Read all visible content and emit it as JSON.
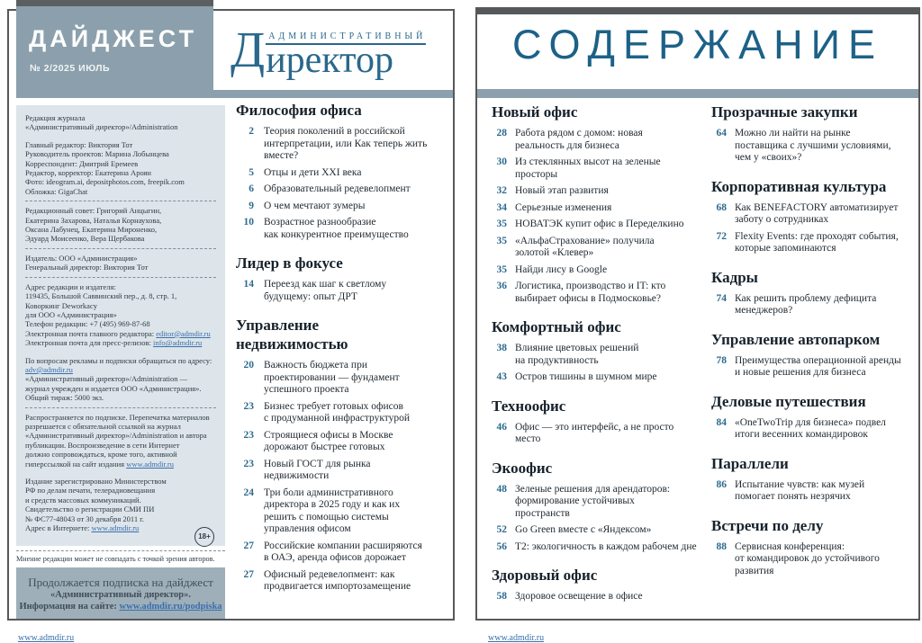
{
  "colors": {
    "accent_teal": "#2a688c",
    "contents_title_teal": "#1d6187",
    "header_gray_blue": "#8ba0ac",
    "sidebar_bg": "#dde5ea",
    "subscription_bg": "#9eafba",
    "link_blue": "#3a6fad",
    "frame_gray": "#57585a",
    "page_number_teal": "#2c6a8e",
    "heading_dark": "#17222c"
  },
  "left_page": {
    "header": {
      "digest_title": "ДАЙДЖЕСТ",
      "issue": "№ 2/2025 ИЮЛЬ",
      "logo_small": "АДМИНИСТРАТИВНЫЙ",
      "logo_word_initial": "Д",
      "logo_word_rest": "иректор"
    },
    "masthead_blocks": [
      {
        "gap": true,
        "lines": [
          [
            {
              "t": "Редакция журнала"
            }
          ],
          [
            {
              "t": "«Административный директор»/Administration"
            }
          ]
        ]
      },
      {
        "sep": true,
        "lines": [
          [
            {
              "t": "Главный редактор: Виктория Тот"
            }
          ],
          [
            {
              "t": "Руководитель проектов: Марина Лобынцева"
            }
          ],
          [
            {
              "t": "Корреспондент: Дмитрий Еремеев"
            }
          ],
          [
            {
              "t": "Редактор, корректор: Екатерина Ароян"
            }
          ],
          [
            {
              "t": "Фото: ideogram.ai, depositphotos.com, freepik.com"
            }
          ],
          [
            {
              "t": "Обложка: GigaChat"
            }
          ]
        ]
      },
      {
        "sep": true,
        "lines": [
          [
            {
              "t": "Редакционный совет: Григорий Анцыгин,"
            }
          ],
          [
            {
              "t": "Екатерина Захарова, Наталья Корнаухова,"
            }
          ],
          [
            {
              "t": "Оксана Лабунец, Екатерина Мироненко,"
            }
          ],
          [
            {
              "t": "Эдуард Моисеенко, Вера Щербакова"
            }
          ]
        ]
      },
      {
        "sep": true,
        "lines": [
          [
            {
              "t": "Издатель: ООО «Администрация»"
            }
          ],
          [
            {
              "t": "Генеральный директор: Виктория Тот"
            }
          ]
        ]
      },
      {
        "gap": true,
        "lines": [
          [
            {
              "t": "Адрес редакции и издателя:"
            }
          ],
          [
            {
              "t": "119435, Большой Саввинский пер., д. 8, стр. 1,"
            }
          ],
          [
            {
              "t": "Коворкинг Deworkacy"
            }
          ],
          [
            {
              "t": "для ООО «Администрация»"
            }
          ],
          [
            {
              "t": "Телефон редакции: +7 (495) 969-87-68"
            }
          ],
          [
            {
              "t": "Электронная почта главного редактора: "
            },
            {
              "t": "editor@admdir.ru",
              "l": 1
            }
          ],
          [
            {
              "t": "Электронная почта для пресс-релизов: "
            },
            {
              "t": "info@admdir.ru",
              "l": 1
            }
          ]
        ]
      },
      {
        "sep": true,
        "lines": [
          [
            {
              "t": "По вопросам рекламы и подписки обращаться по адресу:"
            }
          ],
          [
            {
              "t": "adv@admdir.ru",
              "l": 1
            }
          ],
          [
            {
              "t": "«Административный директор»/Administration —"
            }
          ],
          [
            {
              "t": "журнал учрежден и издается ООО «Администрация»."
            }
          ],
          [
            {
              "t": "Общий тираж: 5000 экз."
            }
          ]
        ]
      },
      {
        "gap": true,
        "lines": [
          [
            {
              "t": "Распространяется по подписке. Перепечатка материалов"
            }
          ],
          [
            {
              "t": "разрешается с обязательной ссылкой на журнал"
            }
          ],
          [
            {
              "t": "«Административный директор»/Administration и автора"
            }
          ],
          [
            {
              "t": "публикации. Воспроизведение в сети Интернет"
            }
          ],
          [
            {
              "t": "должно сопровождаться, кроме того, активной"
            }
          ],
          [
            {
              "t": "гиперссылкой на сайт издания "
            },
            {
              "t": "www.admdir.ru",
              "l": 1
            }
          ]
        ]
      },
      {
        "lines": [
          [
            {
              "t": "Издание зарегистрировано Министерством"
            }
          ],
          [
            {
              "t": "РФ по делам печати, телерадиовещания"
            }
          ],
          [
            {
              "t": "и средств массовых коммуникаций."
            }
          ],
          [
            {
              "t": "Свидетельство о регистрации СМИ ПИ"
            }
          ],
          [
            {
              "t": "№ ФС77-48043 от 30 декабря 2011 г."
            }
          ],
          [
            {
              "t": "Адрес в Интернете: "
            },
            {
              "t": "www.admdir.ru",
              "l": 1
            }
          ]
        ]
      }
    ],
    "age_badge": "18+",
    "disclaimer": "Мнение редакции может не совпадать с точкой зрения авторов.",
    "subscription": {
      "line1": "Продолжается подписка на дайджест",
      "line2": "«Административный директор».",
      "line3_prefix": "Информация на сайте: ",
      "line3_link": "www.admdir.ru/podpiska"
    },
    "footer_link": "www.admdir.ru",
    "toc_sections": [
      {
        "title": "Философия офиса",
        "items": [
          {
            "page": "2",
            "title": "Теория поколений в российской\nинтерпретации, или Как теперь жить\nвместе?"
          },
          {
            "page": "5",
            "title": "Отцы и дети XXI века"
          },
          {
            "page": "6",
            "title": "Образовательный редевелопмент"
          },
          {
            "page": "9",
            "title": "О чем мечтают зумеры"
          },
          {
            "page": "10",
            "title": "Возрастное разнообразие\nкак конкурентное преимущество"
          }
        ]
      },
      {
        "title": "Лидер в фокусе",
        "items": [
          {
            "page": "14",
            "title": "Переезд как шаг к светлому\nбудущему: опыт ДРТ"
          }
        ]
      },
      {
        "title": "Управление\nнедвижимостью",
        "items": [
          {
            "page": "20",
            "title": "Важность бюджета при\nпроектировании — фундамент\nуспешного проекта"
          },
          {
            "page": "23",
            "title": "Бизнес требует готовых офисов\nс продуманной инфраструктурой"
          },
          {
            "page": "23",
            "title": "Строящиеся офисы в Москве\nдорожают быстрее готовых"
          },
          {
            "page": "23",
            "title": "Новый ГОСТ для рынка\nнедвижимости"
          },
          {
            "page": "24",
            "title": "Три боли административного\nдиректора в 2025 году и как их\nрешить с помощью системы\nуправления офисом"
          },
          {
            "page": "27",
            "title": "Российские компании расширяются\nв ОАЭ, аренда офисов дорожает"
          },
          {
            "page": "27",
            "title": "Офисный редевелопмент: как\nпродвигается импортозамещение"
          }
        ]
      }
    ]
  },
  "right_page": {
    "title": "СОДЕРЖАНИЕ",
    "footer_link": "www.admdir.ru",
    "column1_sections": [
      {
        "title": "Новый офис",
        "items": [
          {
            "page": "28",
            "title": "Работа рядом с домом: новая\nреальность для бизнеса"
          },
          {
            "page": "30",
            "title": "Из стеклянных высот на зеленые\nпросторы"
          },
          {
            "page": "32",
            "title": "Новый этап развития"
          },
          {
            "page": "34",
            "title": "Серьезные изменения"
          },
          {
            "page": "35",
            "title": "НОВАТЭК купит офис в Переделкино"
          },
          {
            "page": "35",
            "title": "«АльфаСтрахование» получила\nзолотой «Клевер»"
          },
          {
            "page": "35",
            "title": "Найди лису в Google"
          },
          {
            "page": "36",
            "title": "Логистика, производство и IT: кто\nвыбирает офисы в Подмосковье?"
          }
        ]
      },
      {
        "title": "Комфортный офис",
        "items": [
          {
            "page": "38",
            "title": "Влияние цветовых решений\nна продуктивность"
          },
          {
            "page": "43",
            "title": "Остров тишины в шумном мире"
          }
        ]
      },
      {
        "title": "Техноофис",
        "items": [
          {
            "page": "46",
            "title": "Офис — это интерфейс, а не просто\nместо"
          }
        ]
      },
      {
        "title": "Экоофис",
        "items": [
          {
            "page": "48",
            "title": "Зеленые решения для арендаторов:\nформирование устойчивых\nпространств"
          },
          {
            "page": "52",
            "title": "Go Green вместе с «Яндексом»"
          },
          {
            "page": "56",
            "title": "Т2: экологичность в каждом рабочем дне"
          }
        ]
      },
      {
        "title": "Здоровый офис",
        "items": [
          {
            "page": "58",
            "title": "Здоровое освещение в офисе"
          }
        ]
      }
    ],
    "column2_sections": [
      {
        "title": "Прозрачные закупки",
        "items": [
          {
            "page": "64",
            "title": "Можно ли найти на рынке\nпоставщика с лучшими условиями,\nчем у «своих»?"
          }
        ]
      },
      {
        "title": "Корпоративная культура",
        "items": [
          {
            "page": "68",
            "title": "Как BENEFACTORY автоматизирует\nзаботу о сотрудниках"
          },
          {
            "page": "72",
            "title": "Flexity Events: где проходят события,\nкоторые запоминаются"
          }
        ]
      },
      {
        "title": "Кадры",
        "items": [
          {
            "page": "74",
            "title": "Как решить проблему дефицита\nменеджеров?"
          }
        ]
      },
      {
        "title": "Управление автопарком",
        "items": [
          {
            "page": "78",
            "title": "Преимущества операционной аренды\nи новые решения для бизнеса"
          }
        ]
      },
      {
        "title": "Деловые путешествия",
        "items": [
          {
            "page": "84",
            "title": "«OneTwoTrip для бизнеса» подвел\nитоги весенних командировок"
          }
        ]
      },
      {
        "title": "Параллели",
        "items": [
          {
            "page": "86",
            "title": "Испытание чувств: как музей\nпомогает понять незрячих"
          }
        ]
      },
      {
        "title": "Встречи по делу",
        "items": [
          {
            "page": "88",
            "title": "Сервисная конференция:\nот командировок до устойчивого\nразвития"
          }
        ]
      }
    ]
  }
}
